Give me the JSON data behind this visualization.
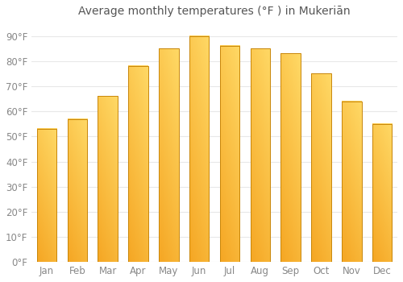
{
  "title": "Average monthly temperatures (°F ) in Mukeriān",
  "months": [
    "Jan",
    "Feb",
    "Mar",
    "Apr",
    "May",
    "Jun",
    "Jul",
    "Aug",
    "Sep",
    "Oct",
    "Nov",
    "Dec"
  ],
  "values": [
    53,
    57,
    66,
    78,
    85,
    90,
    86,
    85,
    83,
    75,
    64,
    55
  ],
  "bar_color_dark": "#F5A623",
  "bar_color_light": "#FFD966",
  "bar_border_color": "#C8860A",
  "ylim": [
    0,
    95
  ],
  "yticks": [
    0,
    10,
    20,
    30,
    40,
    50,
    60,
    70,
    80,
    90
  ],
  "ytick_labels": [
    "0°F",
    "10°F",
    "20°F",
    "30°F",
    "40°F",
    "50°F",
    "60°F",
    "70°F",
    "80°F",
    "90°F"
  ],
  "background_color": "#FFFFFF",
  "grid_color": "#E8E8E8",
  "title_fontsize": 10,
  "tick_fontsize": 8.5,
  "tick_color": "#888888",
  "bar_width": 0.65
}
